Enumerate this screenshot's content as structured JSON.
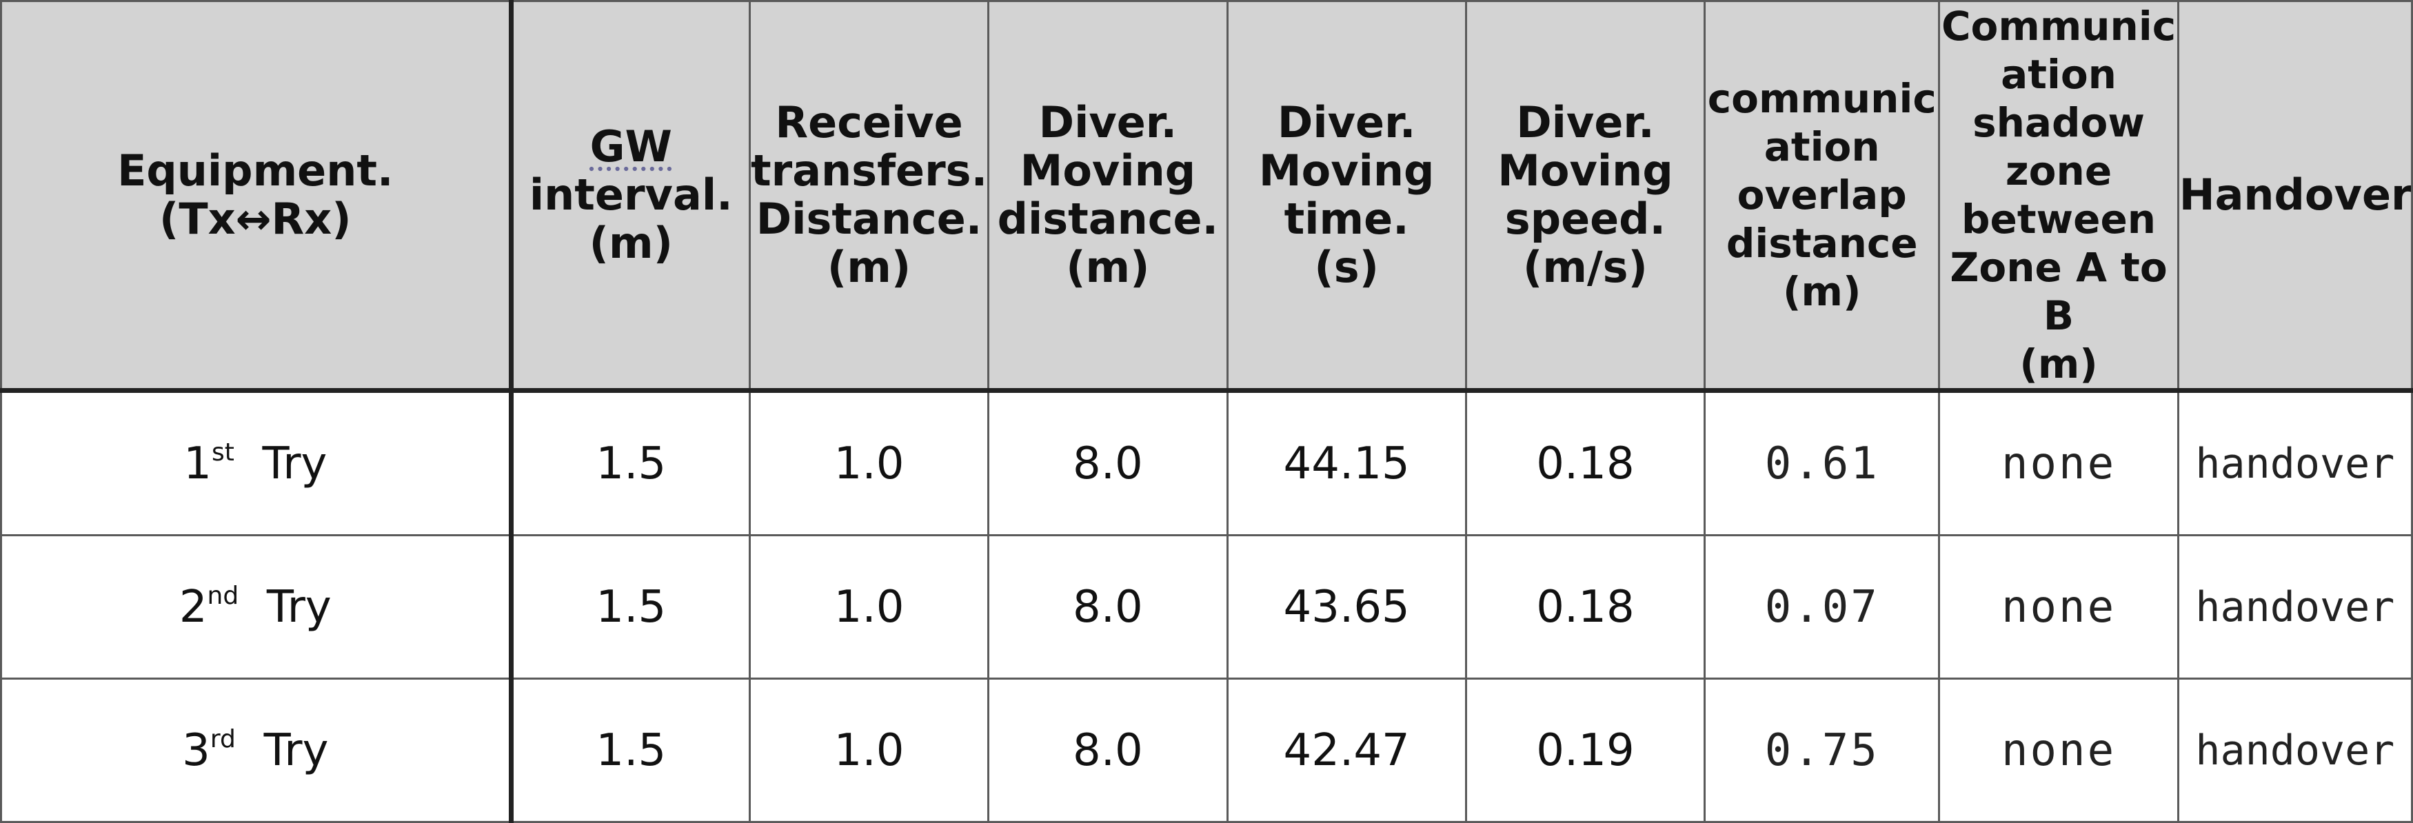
{
  "headers": {
    "equipment": [
      "Equipment.",
      "(Tx↔Rx)"
    ],
    "gw_interval": [
      "GW",
      "interval.",
      "(m)"
    ],
    "receive_distance": [
      "Receive",
      "transfers.",
      "Distance.",
      "(m)"
    ],
    "moving_distance": [
      "Diver.",
      "Moving",
      "distance.",
      "(m)"
    ],
    "moving_time": [
      "Diver.",
      "Moving",
      "time.",
      "(s)"
    ],
    "moving_speed": [
      "Diver.",
      "Moving",
      "speed.",
      "(m/s)"
    ],
    "overlap_distance": [
      "communic",
      "ation",
      "overlap",
      "distance",
      "(m)"
    ],
    "shadow_zone": [
      "Communic",
      "ation",
      "shadow",
      "zone",
      "between",
      "Zone A to",
      "B",
      "(m)"
    ],
    "handover": [
      "Handover"
    ]
  },
  "rows": [
    {
      "ordinal": "1",
      "suffix": "st",
      "try_label": "Try",
      "gw_interval": "1.5",
      "receive_distance": "1.0",
      "moving_distance": "8.0",
      "moving_time": "44.15",
      "moving_speed": "0.18",
      "overlap_distance": "0.61",
      "shadow_zone": "none",
      "handover": "handover"
    },
    {
      "ordinal": "2",
      "suffix": "nd",
      "try_label": "Try",
      "gw_interval": "1.5",
      "receive_distance": "1.0",
      "moving_distance": "8.0",
      "moving_time": "43.65",
      "moving_speed": "0.18",
      "overlap_distance": "0.07",
      "shadow_zone": "none",
      "handover": "handover"
    },
    {
      "ordinal": "3",
      "suffix": "rd",
      "try_label": "Try",
      "gw_interval": "1.5",
      "receive_distance": "1.0",
      "moving_distance": "8.0",
      "moving_time": "42.47",
      "moving_speed": "0.19",
      "overlap_distance": "0.75",
      "shadow_zone": "none",
      "handover": "handover"
    }
  ]
}
